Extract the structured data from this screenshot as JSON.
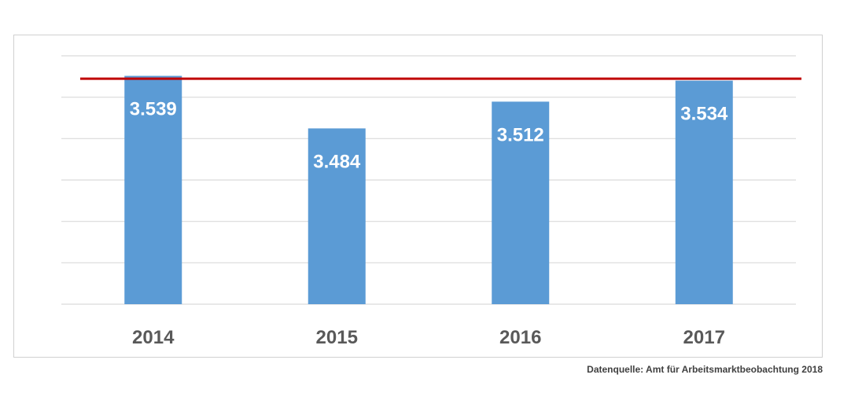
{
  "source_note": "Datenquelle: Amt für Arbeitsmarktbeobachtung 2018",
  "chart_data": {
    "type": "bar",
    "categories": [
      "2014",
      "2015",
      "2016",
      "2017"
    ],
    "values": [
      3539,
      3484,
      3512,
      3534
    ],
    "data_labels": [
      "3.539",
      "3.484",
      "3.512",
      "3.534"
    ],
    "ylim": [
      3300,
      3560
    ],
    "grid": true,
    "reference_line": {
      "value": 3536,
      "color": "#c00000"
    },
    "colors": {
      "bar": "#5b9bd5",
      "grid": "#d9d9d9",
      "axis_labels": "#595959",
      "data_label": "#ffffff"
    }
  }
}
